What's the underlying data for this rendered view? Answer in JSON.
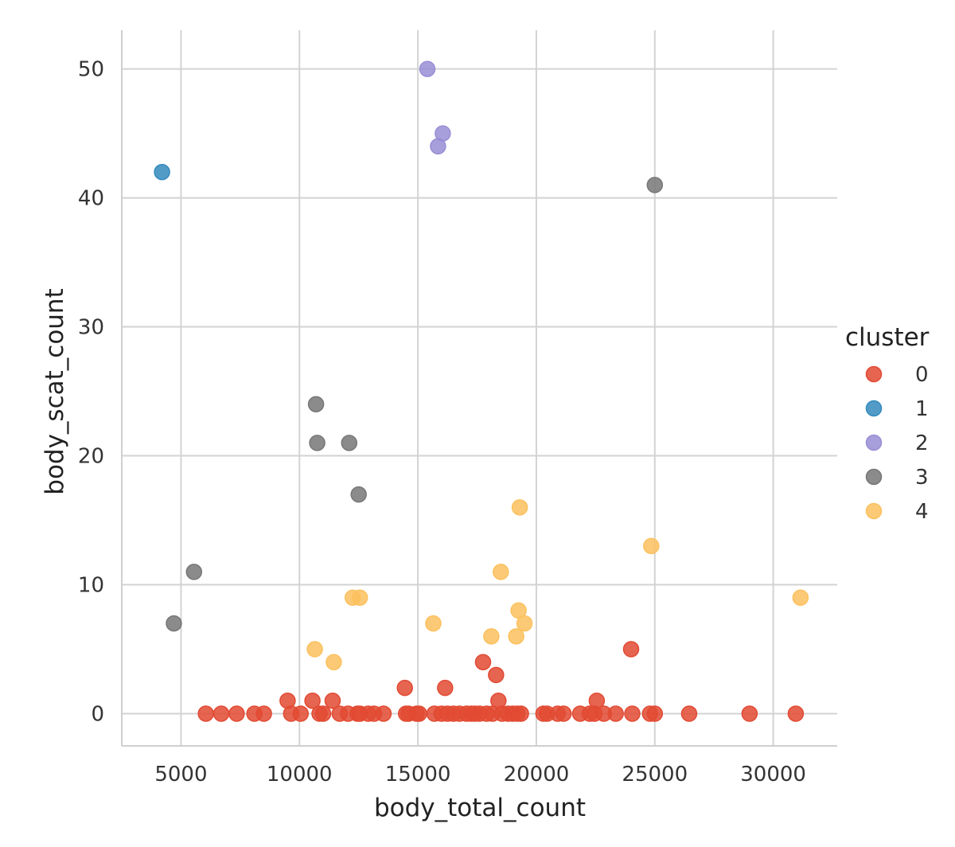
{
  "chart_data": {
    "type": "scatter",
    "title": "",
    "xlabel": "body_total_count",
    "ylabel": "body_scat_count",
    "xlim": [
      2500,
      32700
    ],
    "ylim": [
      -2.5,
      53
    ],
    "xticks": [
      5000,
      10000,
      15000,
      20000,
      25000,
      30000
    ],
    "yticks": [
      0,
      10,
      20,
      30,
      40,
      50
    ],
    "grid": true,
    "legend": {
      "title": "cluster",
      "placement": "right"
    },
    "series": [
      {
        "name": "0",
        "color": "#e24a33",
        "points": [
          [
            6050,
            0
          ],
          [
            6700,
            0
          ],
          [
            7350,
            0
          ],
          [
            8100,
            0
          ],
          [
            8500,
            0
          ],
          [
            9500,
            1
          ],
          [
            9650,
            0
          ],
          [
            10050,
            0
          ],
          [
            10550,
            1
          ],
          [
            10850,
            0
          ],
          [
            11000,
            0
          ],
          [
            11400,
            1
          ],
          [
            11700,
            0
          ],
          [
            12050,
            0
          ],
          [
            12450,
            0
          ],
          [
            12550,
            0
          ],
          [
            12900,
            0
          ],
          [
            13150,
            0
          ],
          [
            13550,
            0
          ],
          [
            14450,
            2
          ],
          [
            14500,
            0
          ],
          [
            14600,
            0
          ],
          [
            14950,
            0
          ],
          [
            15050,
            0
          ],
          [
            15700,
            0
          ],
          [
            16000,
            0
          ],
          [
            16150,
            2
          ],
          [
            16250,
            0
          ],
          [
            16500,
            0
          ],
          [
            16750,
            0
          ],
          [
            17050,
            0
          ],
          [
            17250,
            0
          ],
          [
            17400,
            0
          ],
          [
            17600,
            0
          ],
          [
            17750,
            4
          ],
          [
            17900,
            0
          ],
          [
            18150,
            0
          ],
          [
            18300,
            3
          ],
          [
            18400,
            1
          ],
          [
            18550,
            0
          ],
          [
            18800,
            0
          ],
          [
            19000,
            0
          ],
          [
            19200,
            0
          ],
          [
            19350,
            0
          ],
          [
            20300,
            0
          ],
          [
            20450,
            0
          ],
          [
            20900,
            0
          ],
          [
            21150,
            0
          ],
          [
            21850,
            0
          ],
          [
            22250,
            0
          ],
          [
            22450,
            0
          ],
          [
            22550,
            1
          ],
          [
            22850,
            0
          ],
          [
            23350,
            0
          ],
          [
            24000,
            5
          ],
          [
            24050,
            0
          ],
          [
            24800,
            0
          ],
          [
            25000,
            0
          ],
          [
            26450,
            0
          ],
          [
            29000,
            0
          ],
          [
            30950,
            0
          ]
        ]
      },
      {
        "name": "1",
        "color": "#348abd",
        "points": [
          [
            4200,
            42
          ]
        ]
      },
      {
        "name": "2",
        "color": "#988ed5",
        "points": [
          [
            15400,
            50
          ],
          [
            15850,
            44
          ],
          [
            16050,
            45
          ]
        ]
      },
      {
        "name": "3",
        "color": "#777777",
        "points": [
          [
            4700,
            7
          ],
          [
            5550,
            11
          ],
          [
            10700,
            24
          ],
          [
            10750,
            21
          ],
          [
            12100,
            21
          ],
          [
            12500,
            17
          ],
          [
            25000,
            41
          ]
        ]
      },
      {
        "name": "4",
        "color": "#fbc15e",
        "points": [
          [
            10650,
            5
          ],
          [
            11450,
            4
          ],
          [
            12250,
            9
          ],
          [
            12550,
            9
          ],
          [
            15650,
            7
          ],
          [
            18100,
            6
          ],
          [
            18500,
            11
          ],
          [
            19150,
            6
          ],
          [
            19250,
            8
          ],
          [
            19300,
            16
          ],
          [
            19500,
            7
          ],
          [
            24850,
            13
          ],
          [
            31150,
            9
          ]
        ]
      }
    ]
  }
}
